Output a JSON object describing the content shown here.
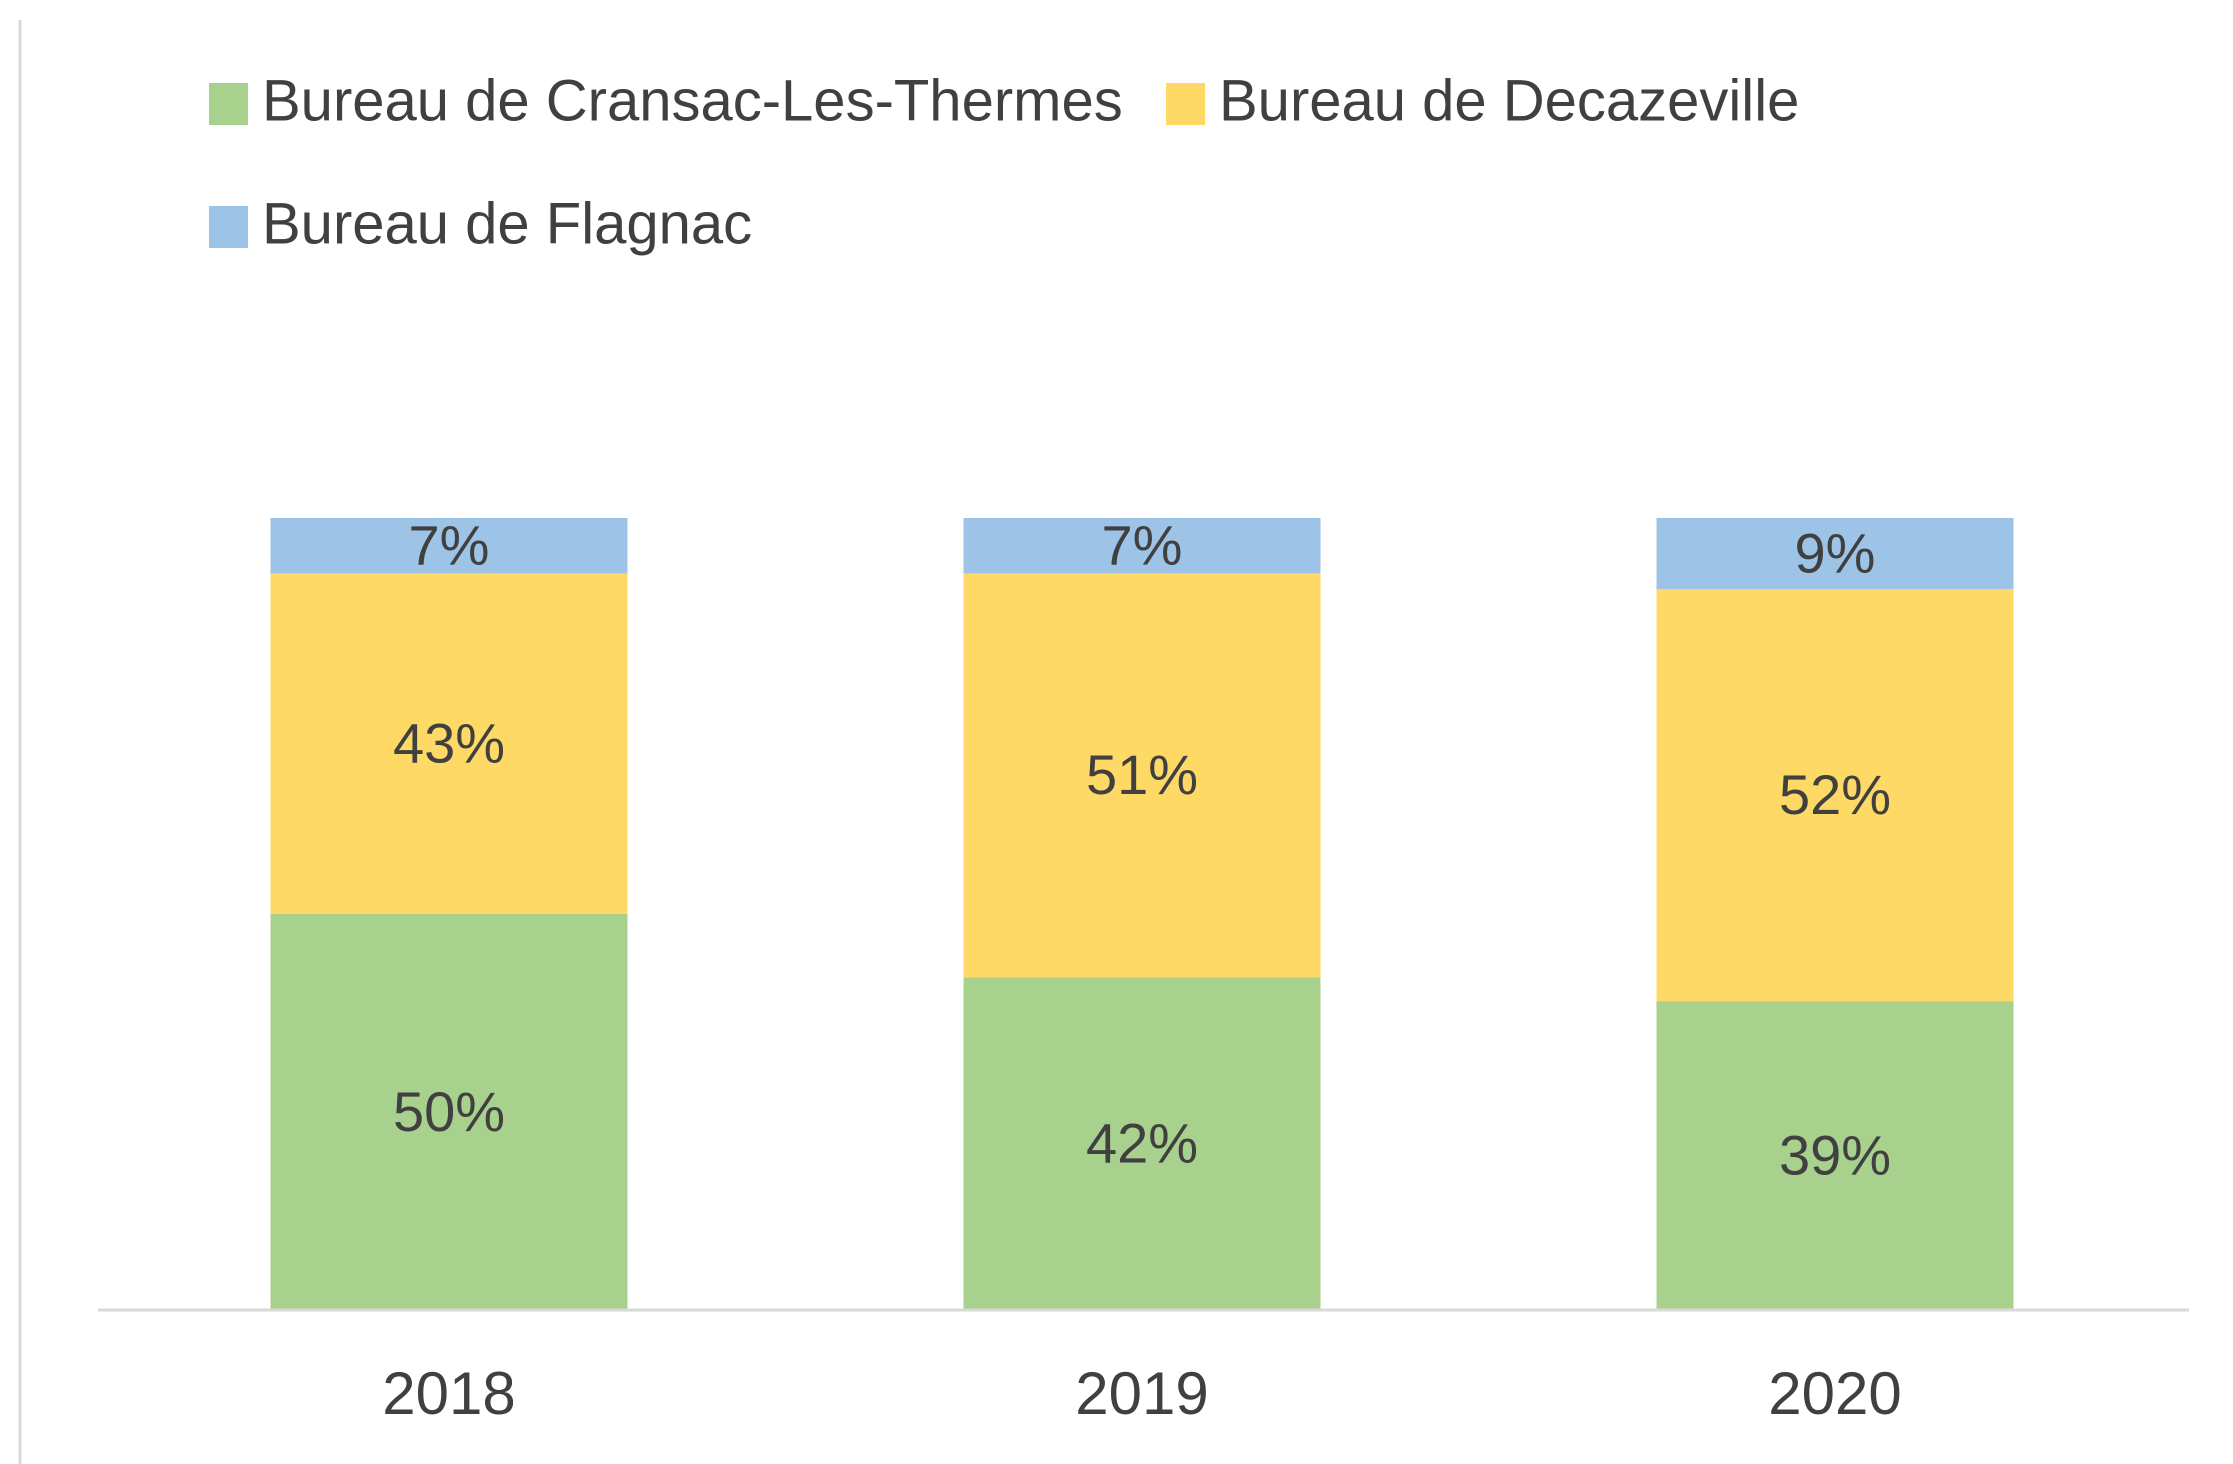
{
  "chart_data": {
    "type": "stacked_bar",
    "categories": [
      "2018",
      "2019",
      "2020"
    ],
    "series": [
      {
        "name": "Bureau de Cransac-Les-Thermes",
        "color": "#a9d18e",
        "values": [
          50,
          42,
          39
        ],
        "value_labels": [
          "50%",
          "42%",
          "39%"
        ]
      },
      {
        "name": "Bureau de Decazeville",
        "color": "#ffd966",
        "values": [
          43,
          51,
          52
        ],
        "value_labels": [
          "43%",
          "51%",
          "52%"
        ]
      },
      {
        "name": "Bureau de Flagnac",
        "color": "#9dc3e6",
        "values": [
          7,
          7,
          9
        ],
        "value_labels": [
          "7%",
          "7%",
          "9%"
        ]
      }
    ]
  }
}
